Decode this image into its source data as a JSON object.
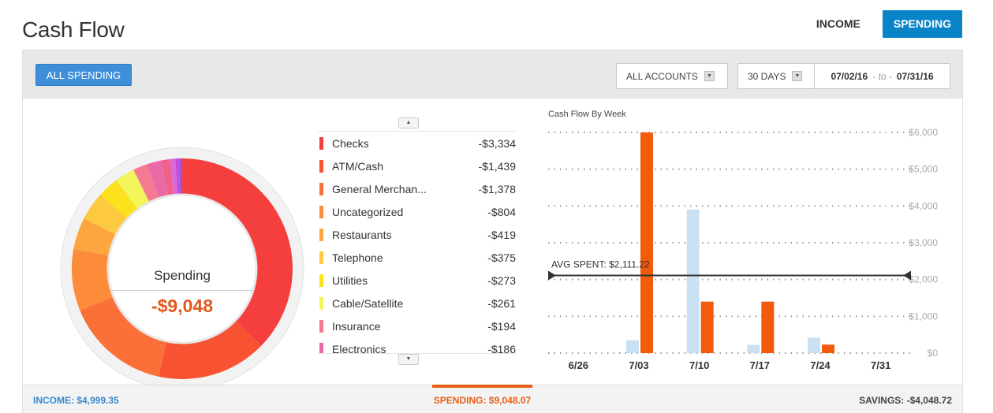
{
  "header": {
    "title": "Cash Flow",
    "tabs": [
      {
        "label": "INCOME",
        "active": false
      },
      {
        "label": "SPENDING",
        "active": true
      }
    ]
  },
  "filters": {
    "all_spending_label": "ALL SPENDING",
    "accounts_label": "ALL ACCOUNTS",
    "period_label": "30 DAYS",
    "date_from": "07/02/16",
    "date_separator": "- to -",
    "date_to": "07/31/16"
  },
  "donut": {
    "label": "Spending",
    "total": "-$9,048"
  },
  "categories": [
    {
      "name": "Checks",
      "amount": "-$3,334",
      "value": 3334,
      "color": "#f53f3f"
    },
    {
      "name": "ATM/Cash",
      "amount": "-$1,439",
      "value": 1439,
      "color": "#f75333"
    },
    {
      "name": "General Merchan...",
      "amount": "-$1,378",
      "value": 1378,
      "color": "#fb6f38"
    },
    {
      "name": "Uncategorized",
      "amount": "-$804",
      "value": 804,
      "color": "#fd8c3a"
    },
    {
      "name": "Restaurants",
      "amount": "-$419",
      "value": 419,
      "color": "#fda53f"
    },
    {
      "name": "Telephone",
      "amount": "-$375",
      "value": 375,
      "color": "#fdc93f"
    },
    {
      "name": "Utilities",
      "amount": "-$273",
      "value": 273,
      "color": "#fbe21c"
    },
    {
      "name": "Cable/Satellite",
      "amount": "-$261",
      "value": 261,
      "color": "#f4f55b"
    },
    {
      "name": "Insurance",
      "amount": "-$194",
      "value": 194,
      "color": "#f57990"
    },
    {
      "name": "Electronics",
      "amount": "-$186",
      "value": 186,
      "color": "#ea6aa8"
    }
  ],
  "chart_data": {
    "type": "bar",
    "title": "Cash Flow By Week",
    "categories": [
      "6/26",
      "7/03",
      "7/10",
      "7/17",
      "7/24",
      "7/31"
    ],
    "series": [
      {
        "name": "",
        "color": "#c9e1f3",
        "values": [
          0,
          350,
          3900,
          220,
          420,
          0
        ]
      },
      {
        "name": "",
        "color": "#f25a0c",
        "values": [
          0,
          6000,
          1400,
          1400,
          230,
          0
        ]
      }
    ],
    "ylim": [
      0,
      6000
    ],
    "y_ticks": [
      "$0",
      "$1,000",
      "$2,000",
      "$3,000",
      "$4,000",
      "$5,000",
      "$6,000"
    ],
    "average": {
      "label": "AVG SPENT: $2,111.22",
      "value": 2111.22
    },
    "grid": true
  },
  "footer": {
    "income": "INCOME: $4,999.35",
    "spending": "SPENDING: $9,048.07",
    "savings": "SAVINGS: -$4,048.72"
  },
  "colors": {
    "accent": "#0a84c9",
    "spending": "#e96118",
    "income": "#3a8ad0"
  }
}
